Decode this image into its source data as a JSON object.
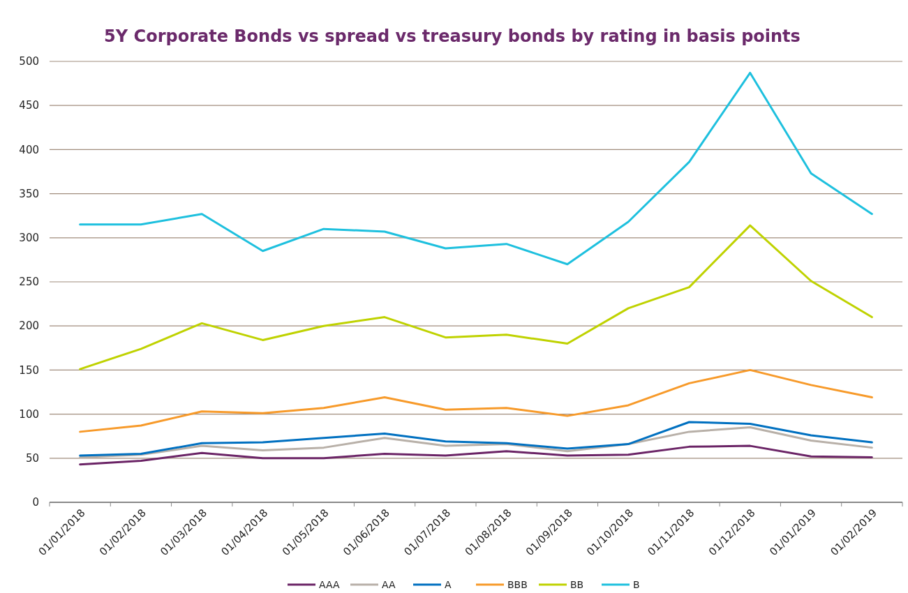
{
  "chart_data": {
    "type": "line",
    "title": "5Y Corporate Bonds vs spread vs treasury bonds by rating in basis points",
    "categories": [
      "01/01/2018",
      "01/02/2018",
      "01/03/2018",
      "01/04/2018",
      "01/05/2018",
      "01/06/2018",
      "01/07/2018",
      "01/08/2018",
      "01/09/2018",
      "01/10/2018",
      "01/11/2018",
      "01/12/2018",
      "01/01/2019",
      "01/02/2019"
    ],
    "series": [
      {
        "name": "AAA",
        "color": "#6b2466",
        "values": [
          43,
          47,
          56,
          50,
          50,
          55,
          53,
          58,
          53,
          54,
          63,
          64,
          52,
          51
        ]
      },
      {
        "name": "AA",
        "color": "#b8b0a8",
        "values": [
          51,
          54,
          64,
          59,
          62,
          73,
          64,
          66,
          58,
          66,
          80,
          85,
          70,
          62
        ]
      },
      {
        "name": "A",
        "color": "#0070c0",
        "values": [
          53,
          55,
          67,
          68,
          73,
          78,
          69,
          67,
          61,
          66,
          91,
          89,
          76,
          68
        ]
      },
      {
        "name": "BBB",
        "color": "#f79a2a",
        "values": [
          80,
          87,
          103,
          101,
          107,
          119,
          105,
          107,
          98,
          110,
          135,
          150,
          133,
          119
        ]
      },
      {
        "name": "BB",
        "color": "#bfd200",
        "values": [
          151,
          174,
          203,
          184,
          200,
          210,
          187,
          190,
          180,
          220,
          244,
          314,
          251,
          210
        ]
      },
      {
        "name": "B",
        "color": "#1ec0de",
        "values": [
          315,
          315,
          327,
          285,
          310,
          307,
          288,
          293,
          270,
          318,
          386,
          487,
          373,
          327
        ]
      }
    ],
    "ylim": [
      0,
      500
    ],
    "yticks": [
      0,
      50,
      100,
      150,
      200,
      250,
      300,
      350,
      400,
      450,
      500
    ],
    "grid": "y",
    "legend": "bottom",
    "marker": "none",
    "line_style": "solid"
  }
}
